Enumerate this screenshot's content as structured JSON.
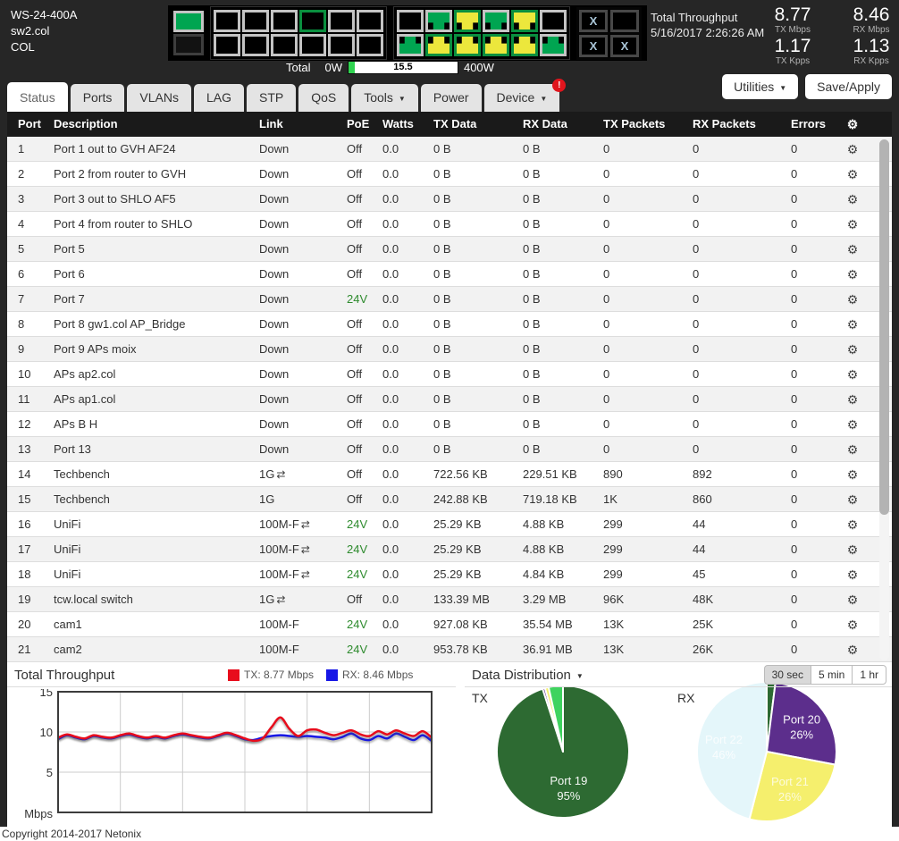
{
  "header": {
    "model": "WS-24-400A",
    "hostname": "sw2.col",
    "location": "COL",
    "throughput_panel": {
      "title": "Total Throughput",
      "timestamp": "5/16/2017 2:26:26 AM",
      "stats": [
        {
          "value": "8.77",
          "label": "TX Mbps"
        },
        {
          "value": "8.46",
          "label": "RX Mbps"
        },
        {
          "value": "1.17",
          "label": "TX Kpps"
        },
        {
          "value": "1.13",
          "label": "RX Kpps"
        }
      ]
    },
    "power_bar": {
      "label": "Total",
      "min": "0W",
      "max": "400W",
      "value": "15.5",
      "fill_pct": 6,
      "fill_color": "#2fd34f"
    },
    "port_graphic": {
      "colors": {
        "link_1g": "#00a551",
        "link_100m": "#ece73c",
        "link_down": "#000000",
        "poe_border": "#0a8f3f",
        "default_border": "#c4c4c4"
      },
      "led": {
        "top": "on",
        "bottom": "off"
      },
      "groups": [
        {
          "top": [
            {
              "n": 1,
              "link": "down",
              "poe": false
            },
            {
              "n": 3,
              "link": "down",
              "poe": false
            },
            {
              "n": 5,
              "link": "down",
              "poe": false
            },
            {
              "n": 7,
              "link": "down",
              "poe": true
            },
            {
              "n": 9,
              "link": "down",
              "poe": false
            },
            {
              "n": 11,
              "link": "down",
              "poe": false
            }
          ],
          "bottom": [
            {
              "n": 2,
              "link": "down",
              "poe": false
            },
            {
              "n": 4,
              "link": "down",
              "poe": false
            },
            {
              "n": 6,
              "link": "down",
              "poe": false
            },
            {
              "n": 8,
              "link": "down",
              "poe": false
            },
            {
              "n": 10,
              "link": "down",
              "poe": false
            },
            {
              "n": 12,
              "link": "down",
              "poe": false
            }
          ]
        },
        {
          "top": [
            {
              "n": 13,
              "link": "down",
              "poe": false
            },
            {
              "n": 15,
              "link": "1g",
              "poe": false
            },
            {
              "n": 17,
              "link": "100m",
              "poe": true
            },
            {
              "n": 19,
              "link": "1g",
              "poe": false
            },
            {
              "n": 21,
              "link": "100m",
              "poe": true
            },
            {
              "n": 23,
              "link": "down",
              "poe": false
            }
          ],
          "bottom": [
            {
              "n": 14,
              "link": "1g",
              "poe": false
            },
            {
              "n": 16,
              "link": "100m",
              "poe": true
            },
            {
              "n": 18,
              "link": "100m",
              "poe": true
            },
            {
              "n": 20,
              "link": "100m",
              "poe": true
            },
            {
              "n": 22,
              "link": "100m",
              "poe": true
            },
            {
              "n": 24,
              "link": "1g",
              "poe": false
            }
          ]
        }
      ],
      "sfp": [
        {
          "mark": "X"
        },
        {
          "mark": ""
        },
        {
          "mark": "X"
        },
        {
          "mark": "X"
        }
      ]
    }
  },
  "tabs": [
    {
      "label": "Status",
      "active": true
    },
    {
      "label": "Ports"
    },
    {
      "label": "VLANs"
    },
    {
      "label": "LAG"
    },
    {
      "label": "STP"
    },
    {
      "label": "QoS"
    },
    {
      "label": "Tools",
      "dropdown": true
    },
    {
      "label": "Power"
    },
    {
      "label": "Device",
      "dropdown": true,
      "badge": "!"
    }
  ],
  "toolbar": {
    "utilities_label": "Utilities",
    "save_label": "Save/Apply"
  },
  "table": {
    "headers": [
      "Port",
      "Description",
      "Link",
      "PoE",
      "Watts",
      "TX Data",
      "RX Data",
      "TX Packets",
      "RX Packets",
      "Errors"
    ],
    "rows": [
      {
        "port": "1",
        "desc": "Port 1 out to GVH AF24",
        "link": "Down",
        "flow": false,
        "poe": "Off",
        "watts": "0.0",
        "tx": "0 B",
        "rx": "0 B",
        "txp": "0",
        "rxp": "0",
        "err": "0"
      },
      {
        "port": "2",
        "desc": "Port 2 from router to GVH",
        "link": "Down",
        "flow": false,
        "poe": "Off",
        "watts": "0.0",
        "tx": "0 B",
        "rx": "0 B",
        "txp": "0",
        "rxp": "0",
        "err": "0"
      },
      {
        "port": "3",
        "desc": "Port 3 out to SHLO AF5",
        "link": "Down",
        "flow": false,
        "poe": "Off",
        "watts": "0.0",
        "tx": "0 B",
        "rx": "0 B",
        "txp": "0",
        "rxp": "0",
        "err": "0"
      },
      {
        "port": "4",
        "desc": "Port 4 from router to SHLO",
        "link": "Down",
        "flow": false,
        "poe": "Off",
        "watts": "0.0",
        "tx": "0 B",
        "rx": "0 B",
        "txp": "0",
        "rxp": "0",
        "err": "0"
      },
      {
        "port": "5",
        "desc": "Port 5",
        "link": "Down",
        "flow": false,
        "poe": "Off",
        "watts": "0.0",
        "tx": "0 B",
        "rx": "0 B",
        "txp": "0",
        "rxp": "0",
        "err": "0"
      },
      {
        "port": "6",
        "desc": "Port 6",
        "link": "Down",
        "flow": false,
        "poe": "Off",
        "watts": "0.0",
        "tx": "0 B",
        "rx": "0 B",
        "txp": "0",
        "rxp": "0",
        "err": "0"
      },
      {
        "port": "7",
        "desc": "Port 7",
        "link": "Down",
        "flow": false,
        "poe": "24V",
        "watts": "0.0",
        "tx": "0 B",
        "rx": "0 B",
        "txp": "0",
        "rxp": "0",
        "err": "0"
      },
      {
        "port": "8",
        "desc": "Port 8 gw1.col AP_Bridge",
        "link": "Down",
        "flow": false,
        "poe": "Off",
        "watts": "0.0",
        "tx": "0 B",
        "rx": "0 B",
        "txp": "0",
        "rxp": "0",
        "err": "0"
      },
      {
        "port": "9",
        "desc": "Port 9 APs moix",
        "link": "Down",
        "flow": false,
        "poe": "Off",
        "watts": "0.0",
        "tx": "0 B",
        "rx": "0 B",
        "txp": "0",
        "rxp": "0",
        "err": "0"
      },
      {
        "port": "10",
        "desc": "APs ap2.col",
        "link": "Down",
        "flow": false,
        "poe": "Off",
        "watts": "0.0",
        "tx": "0 B",
        "rx": "0 B",
        "txp": "0",
        "rxp": "0",
        "err": "0"
      },
      {
        "port": "11",
        "desc": "APs ap1.col",
        "link": "Down",
        "flow": false,
        "poe": "Off",
        "watts": "0.0",
        "tx": "0 B",
        "rx": "0 B",
        "txp": "0",
        "rxp": "0",
        "err": "0"
      },
      {
        "port": "12",
        "desc": "APs B H",
        "link": "Down",
        "flow": false,
        "poe": "Off",
        "watts": "0.0",
        "tx": "0 B",
        "rx": "0 B",
        "txp": "0",
        "rxp": "0",
        "err": "0"
      },
      {
        "port": "13",
        "desc": "Port 13",
        "link": "Down",
        "flow": false,
        "poe": "Off",
        "watts": "0.0",
        "tx": "0 B",
        "rx": "0 B",
        "txp": "0",
        "rxp": "0",
        "err": "0"
      },
      {
        "port": "14",
        "desc": "Techbench",
        "link": "1G",
        "flow": true,
        "poe": "Off",
        "watts": "0.0",
        "tx": "722.56 KB",
        "rx": "229.51 KB",
        "txp": "890",
        "rxp": "892",
        "err": "0"
      },
      {
        "port": "15",
        "desc": "Techbench",
        "link": "1G",
        "flow": false,
        "poe": "Off",
        "watts": "0.0",
        "tx": "242.88 KB",
        "rx": "719.18 KB",
        "txp": "1K",
        "rxp": "860",
        "err": "0"
      },
      {
        "port": "16",
        "desc": "UniFi",
        "link": "100M-F",
        "flow": true,
        "poe": "24V",
        "watts": "0.0",
        "tx": "25.29 KB",
        "rx": "4.88 KB",
        "txp": "299",
        "rxp": "44",
        "err": "0"
      },
      {
        "port": "17",
        "desc": "UniFi",
        "link": "100M-F",
        "flow": true,
        "poe": "24V",
        "watts": "0.0",
        "tx": "25.29 KB",
        "rx": "4.88 KB",
        "txp": "299",
        "rxp": "44",
        "err": "0"
      },
      {
        "port": "18",
        "desc": "UniFi",
        "link": "100M-F",
        "flow": true,
        "poe": "24V",
        "watts": "0.0",
        "tx": "25.29 KB",
        "rx": "4.84 KB",
        "txp": "299",
        "rxp": "45",
        "err": "0"
      },
      {
        "port": "19",
        "desc": "tcw.local switch",
        "link": "1G",
        "flow": true,
        "poe": "Off",
        "watts": "0.0",
        "tx": "133.39 MB",
        "rx": "3.29 MB",
        "txp": "96K",
        "rxp": "48K",
        "err": "0"
      },
      {
        "port": "20",
        "desc": "cam1",
        "link": "100M-F",
        "flow": false,
        "poe": "24V",
        "watts": "0.0",
        "tx": "927.08 KB",
        "rx": "35.54 MB",
        "txp": "13K",
        "rxp": "25K",
        "err": "0"
      },
      {
        "port": "21",
        "desc": "cam2",
        "link": "100M-F",
        "flow": false,
        "poe": "24V",
        "watts": "0.0",
        "tx": "953.78 KB",
        "rx": "36.91 MB",
        "txp": "13K",
        "rxp": "26K",
        "err": "0"
      }
    ]
  },
  "bottom": {
    "throughput_title": "Total Throughput",
    "legend": [
      {
        "label": "TX: 8.77 Mbps",
        "color": "#e80c1c"
      },
      {
        "label": "RX: 8.46 Mbps",
        "color": "#1717e6"
      }
    ],
    "dist_title": "Data Distribution",
    "time_buttons": [
      {
        "label": "30 sec",
        "active": true
      },
      {
        "label": "5 min",
        "active": false
      },
      {
        "label": "1 hr",
        "active": false
      }
    ],
    "tx_label": "TX",
    "rx_label": "RX"
  },
  "footer": {
    "copyright": "Copyright 2014-2017 Netonix"
  },
  "chart_data": [
    {
      "id": "throughput",
      "type": "line",
      "title": "Total Throughput",
      "xlabel": "",
      "ylabel": "Mbps",
      "ylim": [
        0,
        15
      ],
      "yticks": [
        5,
        10,
        15
      ],
      "grid": true,
      "vertical_gridlines": 6,
      "legend_position": "top",
      "series": [
        {
          "name": "TX: 8.77 Mbps",
          "color": "#e80c1c",
          "values": [
            9.3,
            9.7,
            9.4,
            9.2,
            9.6,
            9.4,
            9.3,
            9.6,
            9.8,
            9.5,
            9.3,
            9.5,
            9.3,
            9.6,
            9.8,
            9.6,
            9.4,
            9.3,
            9.6,
            9.9,
            9.6,
            9.2,
            8.9,
            9.2,
            10.6,
            11.8,
            10.4,
            9.5,
            10.2,
            10.3,
            9.9,
            9.6,
            9.9,
            10.2,
            9.7,
            9.5,
            10.1,
            9.7,
            10.2,
            9.8,
            9.5,
            10.1,
            9.3
          ]
        },
        {
          "name": "RX: 8.46 Mbps",
          "color": "#1717e6",
          "values": [
            9.1,
            9.6,
            9.3,
            9.1,
            9.5,
            9.3,
            9.2,
            9.5,
            9.7,
            9.4,
            9.2,
            9.4,
            9.2,
            9.5,
            9.7,
            9.5,
            9.3,
            9.2,
            9.5,
            9.8,
            9.5,
            9.1,
            9.0,
            9.3,
            9.5,
            9.6,
            9.5,
            9.4,
            9.5,
            9.4,
            9.3,
            9.1,
            9.4,
            9.8,
            9.2,
            9.0,
            9.5,
            9.2,
            9.8,
            9.4,
            9.0,
            9.6,
            8.9
          ]
        }
      ]
    },
    {
      "id": "tx-pie",
      "type": "pie",
      "title": "TX",
      "slices": [
        {
          "label": "Port 19",
          "pct": 95,
          "color": "#2d6a32",
          "show_label": true
        },
        {
          "label": "",
          "pct": 0.6,
          "color": "#5c2e8c",
          "show_label": false
        },
        {
          "label": "",
          "pct": 0.9,
          "color": "#f5ef6d",
          "show_label": false
        },
        {
          "label": "",
          "pct": 3.5,
          "color": "#3fd35f",
          "show_label": false
        }
      ]
    },
    {
      "id": "rx-pie",
      "type": "pie",
      "title": "RX",
      "slices": [
        {
          "label": "",
          "pct": 2,
          "color": "#2d6a32",
          "show_label": false
        },
        {
          "label": "Port 20",
          "pct": 26,
          "color": "#5c2e8c",
          "show_label": true
        },
        {
          "label": "Port 21",
          "pct": 26,
          "color": "#f5ef6d",
          "show_label": true,
          "label_opacity": 0.75
        },
        {
          "label": "Port 22",
          "pct": 46,
          "color": "#e4f6fa",
          "show_label": true,
          "label_opacity": 0.8
        }
      ]
    }
  ]
}
